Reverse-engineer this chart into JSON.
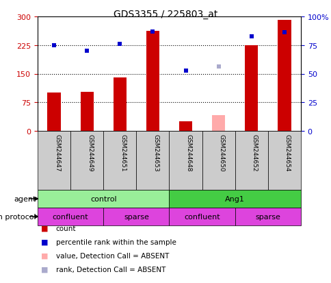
{
  "title": "GDS3355 / 225803_at",
  "samples": [
    "GSM244647",
    "GSM244649",
    "GSM244651",
    "GSM244653",
    "GSM244648",
    "GSM244650",
    "GSM244652",
    "GSM244654"
  ],
  "bar_values": [
    100,
    102,
    140,
    262,
    25,
    null,
    225,
    291
  ],
  "bar_absent": [
    null,
    null,
    null,
    null,
    null,
    42,
    null,
    null
  ],
  "rank_values": [
    225,
    210,
    228,
    260,
    158,
    null,
    248,
    258
  ],
  "rank_absent": [
    null,
    null,
    null,
    null,
    null,
    168,
    null,
    null
  ],
  "bar_color": "#cc0000",
  "bar_absent_color": "#ffaaaa",
  "rank_color": "#0000cc",
  "rank_absent_color": "#aaaacc",
  "ylim_left": [
    0,
    300
  ],
  "ylim_right": [
    0,
    100
  ],
  "yticks_left": [
    0,
    75,
    150,
    225,
    300
  ],
  "yticks_right": [
    0,
    25,
    50,
    75,
    100
  ],
  "ytick_labels_left": [
    "0",
    "75",
    "150",
    "225",
    "300"
  ],
  "ytick_labels_right": [
    "0",
    "25",
    "50",
    "75",
    "100%"
  ],
  "hlines": [
    75,
    150,
    225
  ],
  "agent_groups": [
    {
      "label": "control",
      "start": 0,
      "end": 4,
      "color": "#99ee99"
    },
    {
      "label": "Ang1",
      "start": 4,
      "end": 8,
      "color": "#44cc44"
    }
  ],
  "growth_labels": [
    "confluent",
    "sparse",
    "confluent",
    "sparse"
  ],
  "growth_ranges": [
    [
      0,
      2
    ],
    [
      2,
      4
    ],
    [
      4,
      6
    ],
    [
      6,
      8
    ]
  ],
  "growth_color": "#dd44dd",
  "legend_items": [
    {
      "label": "count",
      "color": "#cc0000"
    },
    {
      "label": "percentile rank within the sample",
      "color": "#0000cc"
    },
    {
      "label": "value, Detection Call = ABSENT",
      "color": "#ffaaaa"
    },
    {
      "label": "rank, Detection Call = ABSENT",
      "color": "#aaaacc"
    }
  ],
  "background_color": "#ffffff",
  "bar_width": 0.4
}
